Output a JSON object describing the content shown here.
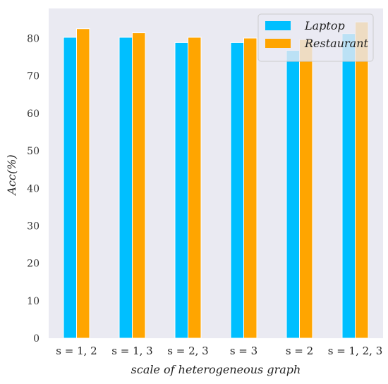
{
  "chart_data": {
    "type": "bar",
    "xlabel": "scale of heterogeneous graph",
    "ylabel": "Acc(%)",
    "ylim": [
      0,
      88
    ],
    "yticks": [
      0,
      10,
      20,
      30,
      40,
      50,
      60,
      70,
      80
    ],
    "categories": [
      "s = 1, 2",
      "s = 1, 3",
      "s = 2, 3",
      "s = 3",
      "s = 2",
      "s = 1, 2, 3"
    ],
    "series": [
      {
        "name": "Laptop",
        "color": "#00bfff",
        "values": [
          80.3,
          80.3,
          78.9,
          78.9,
          76.8,
          81.3
        ]
      },
      {
        "name": "Restaurant",
        "color": "#ffa500",
        "values": [
          82.6,
          81.5,
          80.3,
          80.1,
          79.7,
          84.4
        ]
      }
    ],
    "grid": false,
    "legend": "top-right",
    "background": "#eaeaf2"
  }
}
